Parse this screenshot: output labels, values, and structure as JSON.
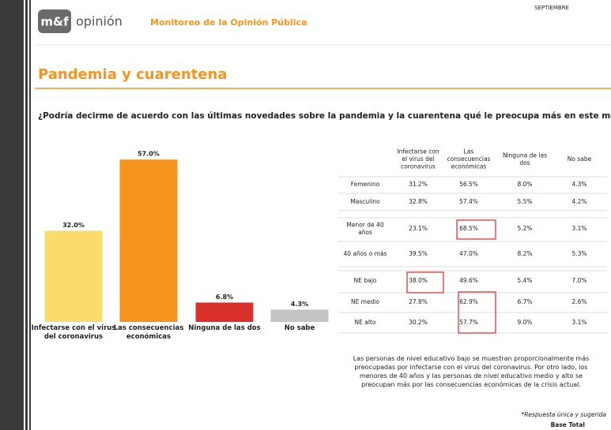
{
  "header": {
    "logo": "m&f",
    "brand": "opinión",
    "subtitle": "Monitoreo de la Opinión Pública",
    "month": "SEPTIEMBRE"
  },
  "title": "Pandemia y cuarentena",
  "question": "¿Podría decirme de acuerdo con las últimas novedades sobre la pandemia y la cuarentena qué le preocupa más en este momento?",
  "chart_data": {
    "type": "bar",
    "categories": [
      "Infectarse con el virus del coronavirus",
      "Las consecuencias económicas",
      "Ninguna de las dos",
      "No sabe"
    ],
    "values": [
      32.0,
      57.0,
      6.8,
      4.3
    ],
    "value_labels": [
      "32.0%",
      "57.0%",
      "6.8%",
      "4.3%"
    ],
    "colors": [
      "#f9dc6b",
      "#f7941d",
      "#d9302c",
      "#c4c4c4"
    ]
  },
  "table": {
    "columns": [
      "Infectarse con el virus del coronavirus",
      "Las consecuencias económicas",
      "Ninguna de las dos",
      "No sabe"
    ],
    "rows": [
      [
        "Femenino",
        "31.2%",
        "56.5%",
        "8.0%",
        "4.3%"
      ],
      [
        "Masculino",
        "32.8%",
        "57.4%",
        "5.5%",
        "4.2%"
      ],
      [
        "Menor de 40 años",
        "23.1%",
        "68.5%",
        "5.2%",
        "3.1%"
      ],
      [
        "40 años o más",
        "39.5%",
        "47.0%",
        "8.2%",
        "5.3%"
      ],
      [
        "NE bajo",
        "38.0%",
        "49.6%",
        "5.4%",
        "7.0%"
      ],
      [
        "NE medio",
        "27.8%",
        "62.9%",
        "6.7%",
        "2.6%"
      ],
      [
        "NE alto",
        "30.2%",
        "57.7%",
        "9.0%",
        "3.1%"
      ]
    ]
  },
  "note": "Las personas de nivel educativo bajo se muestran proporcionalmente más preocupadas por infectarse con el virus del coronavirus. Por otro lado, los menores de 40 años y las personas de nivel educativo medio y alto se preocupan más por las consecuencias económicas de la crisis actual.",
  "footnote": "*Respuesta única y sugerida",
  "base": "Base Total"
}
